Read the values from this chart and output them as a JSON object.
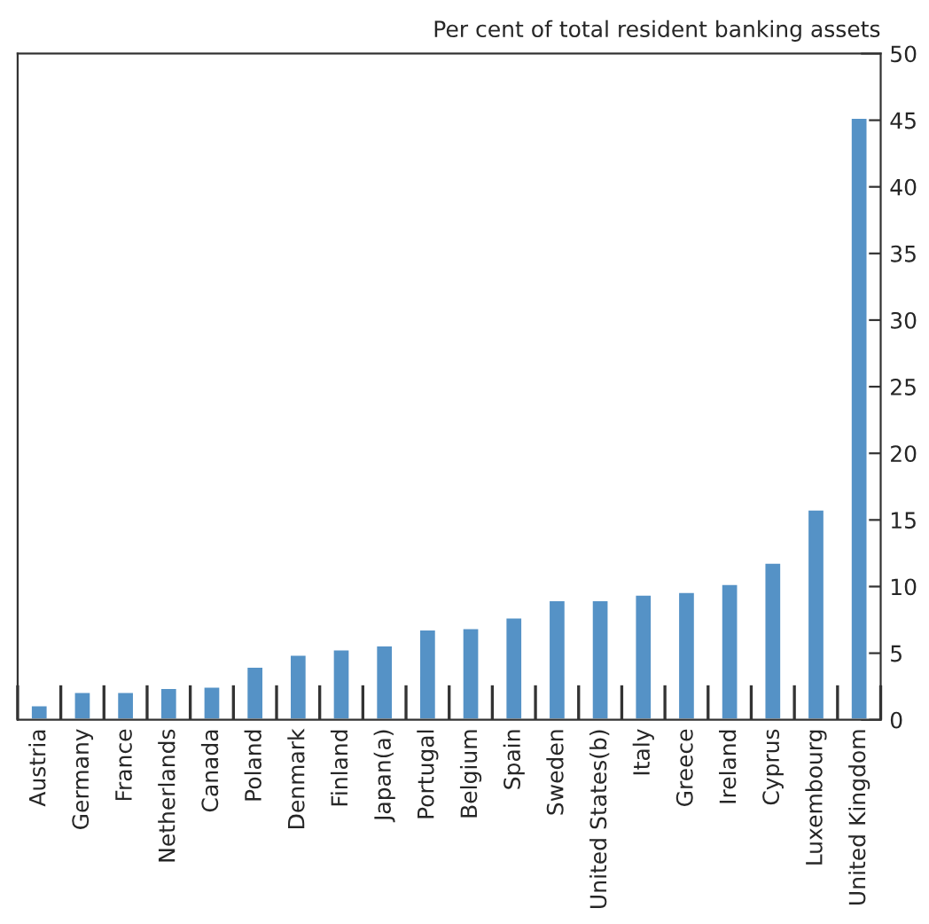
{
  "chart_data": {
    "type": "bar",
    "ylabel": "Per cent of total resident banking assets",
    "categories": [
      "Austria",
      "Germany",
      "France",
      "Netherlands",
      "Canada",
      "Poland",
      "Denmark",
      "Finland",
      "Japan(a)",
      "Portugal",
      "Belgium",
      "Spain",
      "Sweden",
      "United States(b)",
      "Italy",
      "Greece",
      "Ireland",
      "Cyprus",
      "Luxembourg",
      "United Kingdom"
    ],
    "values": [
      1.1,
      2.1,
      2.1,
      2.4,
      2.5,
      4.0,
      4.9,
      5.3,
      5.6,
      6.8,
      6.9,
      7.7,
      9.0,
      9.0,
      9.4,
      9.6,
      10.2,
      11.8,
      15.8,
      45.2
    ],
    "color": "#5592c6",
    "ylim": [
      0,
      50
    ],
    "yticks": [
      0,
      5,
      10,
      15,
      20,
      25,
      30,
      35,
      40,
      45,
      50
    ],
    "grid": false,
    "legend": false
  }
}
